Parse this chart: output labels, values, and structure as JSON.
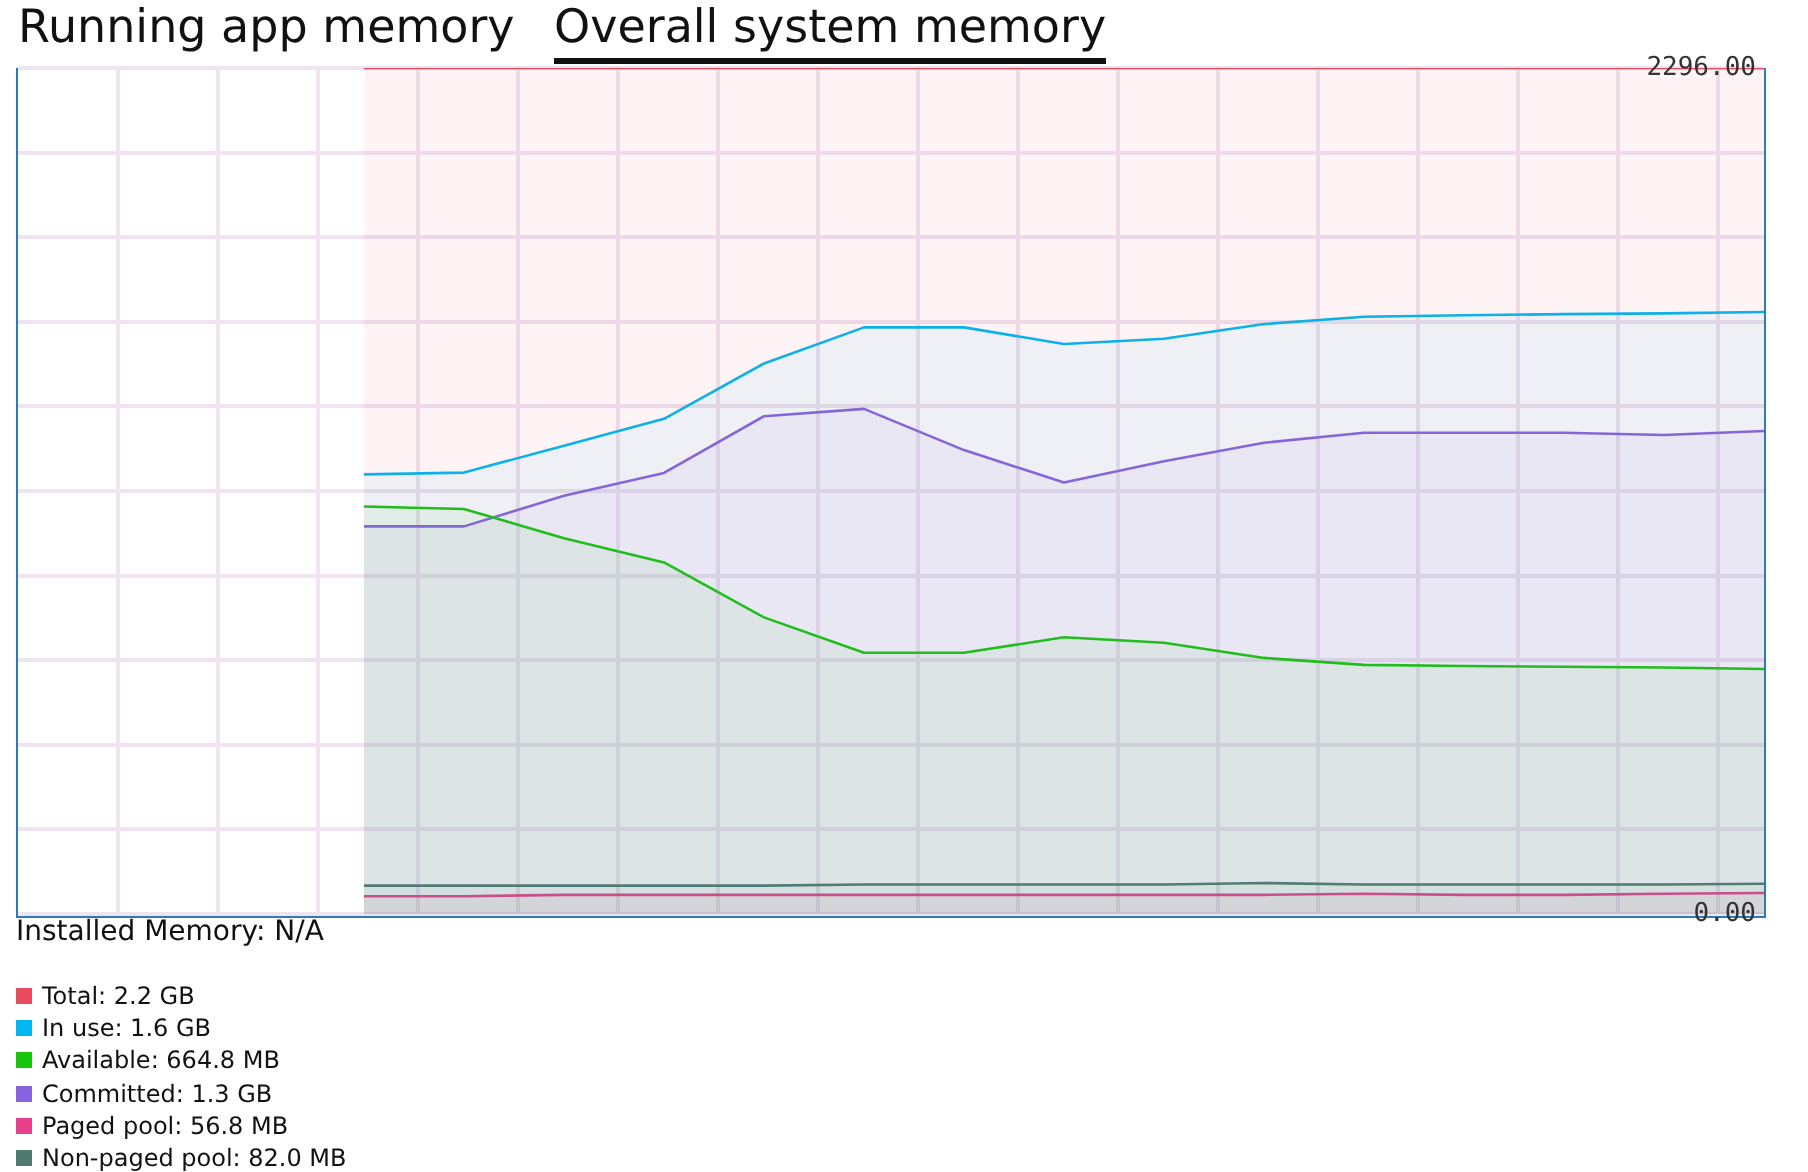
{
  "chart_data": {
    "type": "area",
    "title": "Overall system memory",
    "annotations": [
      "Running app memory",
      "Installed Memory: N/A"
    ],
    "categories": [
      null,
      null,
      null,
      null,
      null,
      null,
      null,
      null,
      null,
      null,
      null,
      null,
      null,
      null,
      null,
      null,
      null,
      null
    ],
    "ylim": [
      0,
      2296
    ],
    "yticks": [
      {
        "value": 0,
        "label": "0.00"
      },
      {
        "value": 229.6,
        "label": null
      },
      {
        "value": 459.2,
        "label": null
      },
      {
        "value": 688.8,
        "label": null
      },
      {
        "value": 918.4,
        "label": null
      },
      {
        "value": 1148,
        "label": null
      },
      {
        "value": 1377.6,
        "label": null
      },
      {
        "value": 1607.2,
        "label": null
      },
      {
        "value": 1836.8,
        "label": null
      },
      {
        "value": 2066.4,
        "label": null
      },
      {
        "value": 2296,
        "label": "2296.00"
      }
    ],
    "series": [
      {
        "name": "Total: 2.2 GB",
        "color": "#e84a5f",
        "values": [
          null,
          null,
          null,
          2296,
          2296,
          2296,
          2296,
          2296,
          2296,
          2296,
          2296,
          2296,
          2296,
          2296,
          2296,
          2296,
          2296,
          2296
        ]
      },
      {
        "name": "In use: 1.6 GB",
        "color": "#00b7f1",
        "values": [
          null,
          null,
          null,
          1193,
          1198,
          1271,
          1344,
          1494,
          1592,
          1592,
          1547,
          1561,
          1601,
          1621,
          1625,
          1628,
          1630,
          1634
        ]
      },
      {
        "name": "Available: 664.8 MB",
        "color": "#16c60c",
        "values": [
          null,
          null,
          null,
          1106,
          1099,
          1020,
          954,
          805,
          709,
          709,
          751,
          736,
          695,
          676,
          673,
          671,
          669,
          665
        ]
      },
      {
        "name": "Committed: 1.3 GB",
        "color": "#8764e0",
        "values": [
          null,
          null,
          null,
          1052,
          1052,
          1135,
          1197,
          1351,
          1371,
          1259,
          1171,
          1229,
          1279,
          1306,
          1306,
          1306,
          1300,
          1311
        ]
      },
      {
        "name": "Paged pool: 56.8 MB",
        "color": "#e8408a",
        "values": [
          null,
          null,
          null,
          48,
          48,
          52,
          52,
          52,
          52,
          52,
          52,
          52,
          52,
          55,
          52,
          52,
          55,
          57
        ]
      },
      {
        "name": "Non-paged pool: 82.0 MB",
        "color": "#4f7a70",
        "values": [
          null,
          null,
          null,
          77,
          77,
          77,
          77,
          77,
          80,
          80,
          80,
          80,
          84,
          80,
          80,
          80,
          80,
          82
        ]
      }
    ],
    "grid": true,
    "legend": "bottom",
    "marker": "none",
    "line_style": "solid",
    "tick_labels": "y"
  }
}
